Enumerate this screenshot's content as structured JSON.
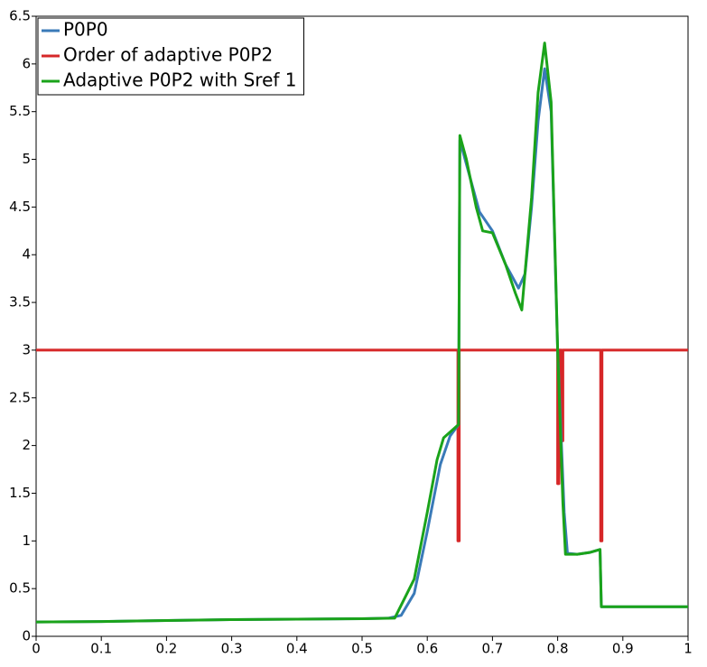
{
  "chart_data": {
    "type": "line",
    "xlim": [
      0,
      1
    ],
    "xticks": [
      0,
      0.1,
      0.2,
      0.3,
      0.4,
      0.5,
      0.6,
      0.7,
      0.8,
      0.9,
      1
    ],
    "ylim": [
      0,
      6.5
    ],
    "yticks": [
      0,
      0.5,
      1,
      1.5,
      2,
      2.5,
      3,
      3.5,
      4,
      4.5,
      5,
      5.5,
      6,
      6.5
    ],
    "legend": "upper-left",
    "series": [
      {
        "name": "P0P0",
        "color": "#3a7ab8",
        "x": [
          0,
          0.1,
          0.2,
          0.3,
          0.4,
          0.5,
          0.54,
          0.56,
          0.58,
          0.6,
          0.62,
          0.635,
          0.648,
          0.65,
          0.66,
          0.68,
          0.7,
          0.72,
          0.74,
          0.75,
          0.76,
          0.77,
          0.78,
          0.79,
          0.8,
          0.81,
          0.815,
          0.83,
          0.85,
          0.865,
          0.867,
          0.9,
          1
        ],
        "values": [
          0.15,
          0.155,
          0.165,
          0.175,
          0.18,
          0.185,
          0.19,
          0.22,
          0.45,
          1.1,
          1.8,
          2.1,
          2.22,
          5.2,
          4.95,
          4.45,
          4.25,
          3.9,
          3.65,
          3.8,
          4.5,
          5.4,
          5.95,
          5.5,
          3.0,
          1.3,
          0.87,
          0.86,
          0.88,
          0.91,
          0.31,
          0.31,
          0.31
        ]
      },
      {
        "name": "Order of adaptive P0P2",
        "color": "#d62728",
        "x": [
          0,
          0.647,
          0.647,
          0.649,
          0.649,
          0.8,
          0.8,
          0.802,
          0.802,
          0.806,
          0.806,
          0.808,
          0.808,
          0.866,
          0.866,
          0.868,
          0.868,
          1
        ],
        "values": [
          3,
          3,
          1.0,
          1.0,
          3,
          3,
          1.6,
          1.6,
          3,
          3,
          2.05,
          2.05,
          3,
          3,
          1.0,
          1.0,
          3,
          3
        ]
      },
      {
        "name": "Adaptive P0P2 with Sref 1",
        "color": "#1aa31a",
        "x": [
          0,
          0.1,
          0.2,
          0.3,
          0.4,
          0.5,
          0.55,
          0.58,
          0.6,
          0.615,
          0.625,
          0.648,
          0.65,
          0.66,
          0.675,
          0.685,
          0.7,
          0.72,
          0.735,
          0.745,
          0.76,
          0.77,
          0.78,
          0.79,
          0.8,
          0.808,
          0.812,
          0.83,
          0.85,
          0.865,
          0.867,
          1
        ],
        "values": [
          0.15,
          0.155,
          0.165,
          0.175,
          0.18,
          0.185,
          0.19,
          0.6,
          1.3,
          1.85,
          2.08,
          2.22,
          5.25,
          5.0,
          4.5,
          4.25,
          4.23,
          3.9,
          3.6,
          3.42,
          4.6,
          5.7,
          6.22,
          5.6,
          3.0,
          1.4,
          0.86,
          0.86,
          0.88,
          0.91,
          0.31,
          0.31
        ]
      }
    ]
  }
}
